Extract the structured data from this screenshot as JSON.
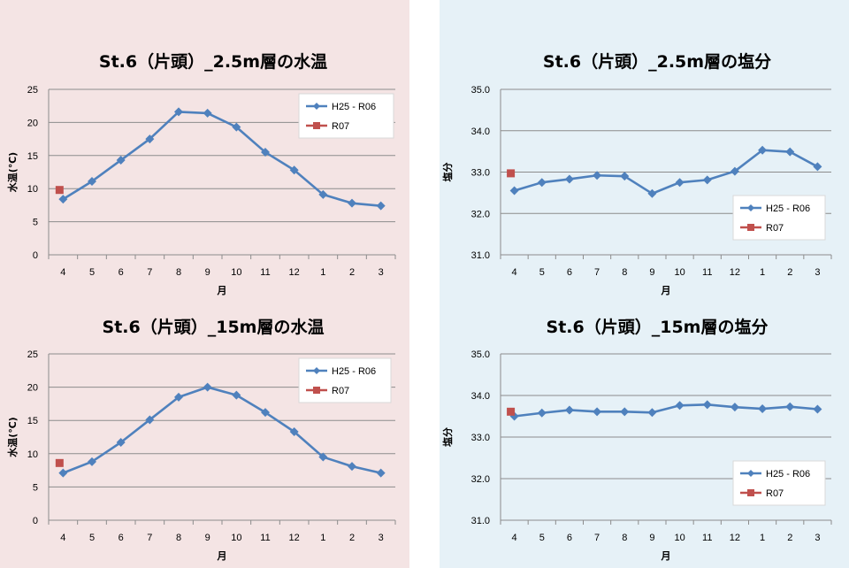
{
  "colors": {
    "series_main": "#4f81bd",
    "series_current": "#c0504d",
    "grid": "#8c8c8c",
    "panel_left_bg": "#f4e4e4",
    "panel_right_bg": "#e6f1f7"
  },
  "chart_data": [
    {
      "type": "line",
      "title": "St.6（片頭）_2.5m層の水温",
      "xlabel": "月",
      "ylabel": "水温(℃)",
      "categories": [
        "4",
        "5",
        "6",
        "7",
        "8",
        "9",
        "10",
        "11",
        "12",
        "1",
        "2",
        "3"
      ],
      "ylim": [
        0,
        25
      ],
      "yticks": [
        "0",
        "5",
        "10",
        "15",
        "20",
        "25"
      ],
      "grid": true,
      "legend": "top-right",
      "series": [
        {
          "name": "H25 - R06",
          "values": [
            8.4,
            11.1,
            14.3,
            17.5,
            21.6,
            21.4,
            19.3,
            15.5,
            12.8,
            9.1,
            7.8,
            7.4
          ]
        },
        {
          "name": "R07",
          "values": [
            9.8,
            null,
            null,
            null,
            null,
            null,
            null,
            null,
            null,
            null,
            null,
            null
          ]
        }
      ]
    },
    {
      "type": "line",
      "title": "St.6（片頭）_2.5m層の塩分",
      "xlabel": "月",
      "ylabel": "塩分",
      "categories": [
        "4",
        "5",
        "6",
        "7",
        "8",
        "9",
        "10",
        "11",
        "12",
        "1",
        "2",
        "3"
      ],
      "ylim": [
        31.0,
        35.0
      ],
      "yticks": [
        "31.0",
        "32.0",
        "33.0",
        "34.0",
        "35.0"
      ],
      "grid": true,
      "legend": "bottom-right",
      "series": [
        {
          "name": "H25 - R06",
          "values": [
            32.55,
            32.75,
            32.83,
            32.92,
            32.9,
            32.48,
            32.75,
            32.81,
            33.02,
            33.53,
            33.49,
            33.13
          ]
        },
        {
          "name": "R07",
          "values": [
            32.97,
            null,
            null,
            null,
            null,
            null,
            null,
            null,
            null,
            null,
            null,
            null
          ]
        }
      ]
    },
    {
      "type": "line",
      "title": "St.6（片頭）_15m層の水温",
      "xlabel": "月",
      "ylabel": "水温(℃)",
      "categories": [
        "4",
        "5",
        "6",
        "7",
        "8",
        "9",
        "10",
        "11",
        "12",
        "1",
        "2",
        "3"
      ],
      "ylim": [
        0,
        25
      ],
      "yticks": [
        "0",
        "5",
        "10",
        "15",
        "20",
        "25"
      ],
      "grid": true,
      "legend": "top-right",
      "series": [
        {
          "name": "H25 - R06",
          "values": [
            7.1,
            8.8,
            11.7,
            15.1,
            18.5,
            20.0,
            18.8,
            16.2,
            13.3,
            9.5,
            8.1,
            7.1
          ]
        },
        {
          "name": "R07",
          "values": [
            8.6,
            null,
            null,
            null,
            null,
            null,
            null,
            null,
            null,
            null,
            null,
            null
          ]
        }
      ]
    },
    {
      "type": "line",
      "title": "St.6（片頭）_15m層の塩分",
      "xlabel": "月",
      "ylabel": "塩分",
      "categories": [
        "4",
        "5",
        "6",
        "7",
        "8",
        "9",
        "10",
        "11",
        "12",
        "1",
        "2",
        "3"
      ],
      "ylim": [
        31.0,
        35.0
      ],
      "yticks": [
        "31.0",
        "32.0",
        "33.0",
        "34.0",
        "35.0"
      ],
      "grid": true,
      "legend": "bottom-right",
      "series": [
        {
          "name": "H25 - R06",
          "values": [
            33.5,
            33.58,
            33.65,
            33.61,
            33.61,
            33.59,
            33.76,
            33.78,
            33.72,
            33.68,
            33.73,
            33.67
          ]
        },
        {
          "name": "R07",
          "values": [
            33.61,
            null,
            null,
            null,
            null,
            null,
            null,
            null,
            null,
            null,
            null,
            null
          ]
        }
      ]
    }
  ]
}
